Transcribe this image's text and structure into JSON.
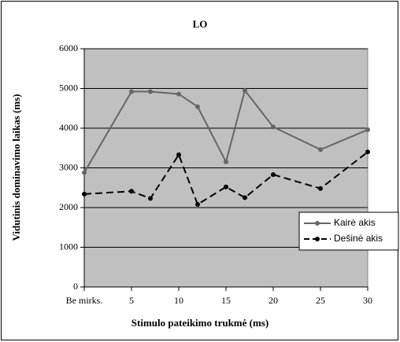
{
  "chart_data": {
    "type": "line",
    "title": "LO",
    "x_label": "Stimulo pateikimo trukmė (ms)",
    "y_label": "Vidutinis dominavimo laikas (ms)",
    "x": [
      0,
      5,
      7,
      10,
      12,
      15,
      17,
      20,
      25,
      30
    ],
    "series": [
      {
        "name": "Kairė akis",
        "color": "#666666",
        "dash": false,
        "values": [
          2880,
          4920,
          4920,
          4860,
          4540,
          3150,
          4950,
          4030,
          3460,
          3960
        ]
      },
      {
        "name": "Dešinė akis",
        "color": "#000000",
        "dash": true,
        "values": [
          2340,
          2410,
          2230,
          3330,
          2080,
          2520,
          2250,
          2830,
          2480,
          3400
        ]
      }
    ],
    "xlim": [
      0,
      30
    ],
    "xticks": [
      {
        "value": 0,
        "label": "Be mirks."
      },
      5,
      10,
      15,
      20,
      25,
      30
    ],
    "ylim": [
      0,
      6000
    ],
    "yticks": [
      0,
      1000,
      2000,
      3000,
      4000,
      5000,
      6000
    ],
    "grid": true,
    "legend": "right"
  }
}
